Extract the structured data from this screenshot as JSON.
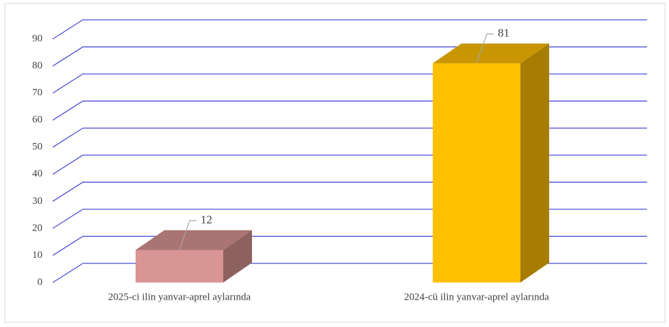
{
  "chart_data": {
    "type": "bar3d",
    "categories": [
      "2025-ci ilin yanvar-aprel aylarında",
      "2024-cü ilin yanvar-aprel aylarında"
    ],
    "values": [
      12,
      81
    ],
    "colors": [
      "#d99594",
      "#ffc000"
    ],
    "ylim": [
      0,
      90
    ],
    "yticks": [
      0,
      10,
      20,
      30,
      40,
      50,
      60,
      70,
      80,
      90
    ],
    "grid": true
  }
}
